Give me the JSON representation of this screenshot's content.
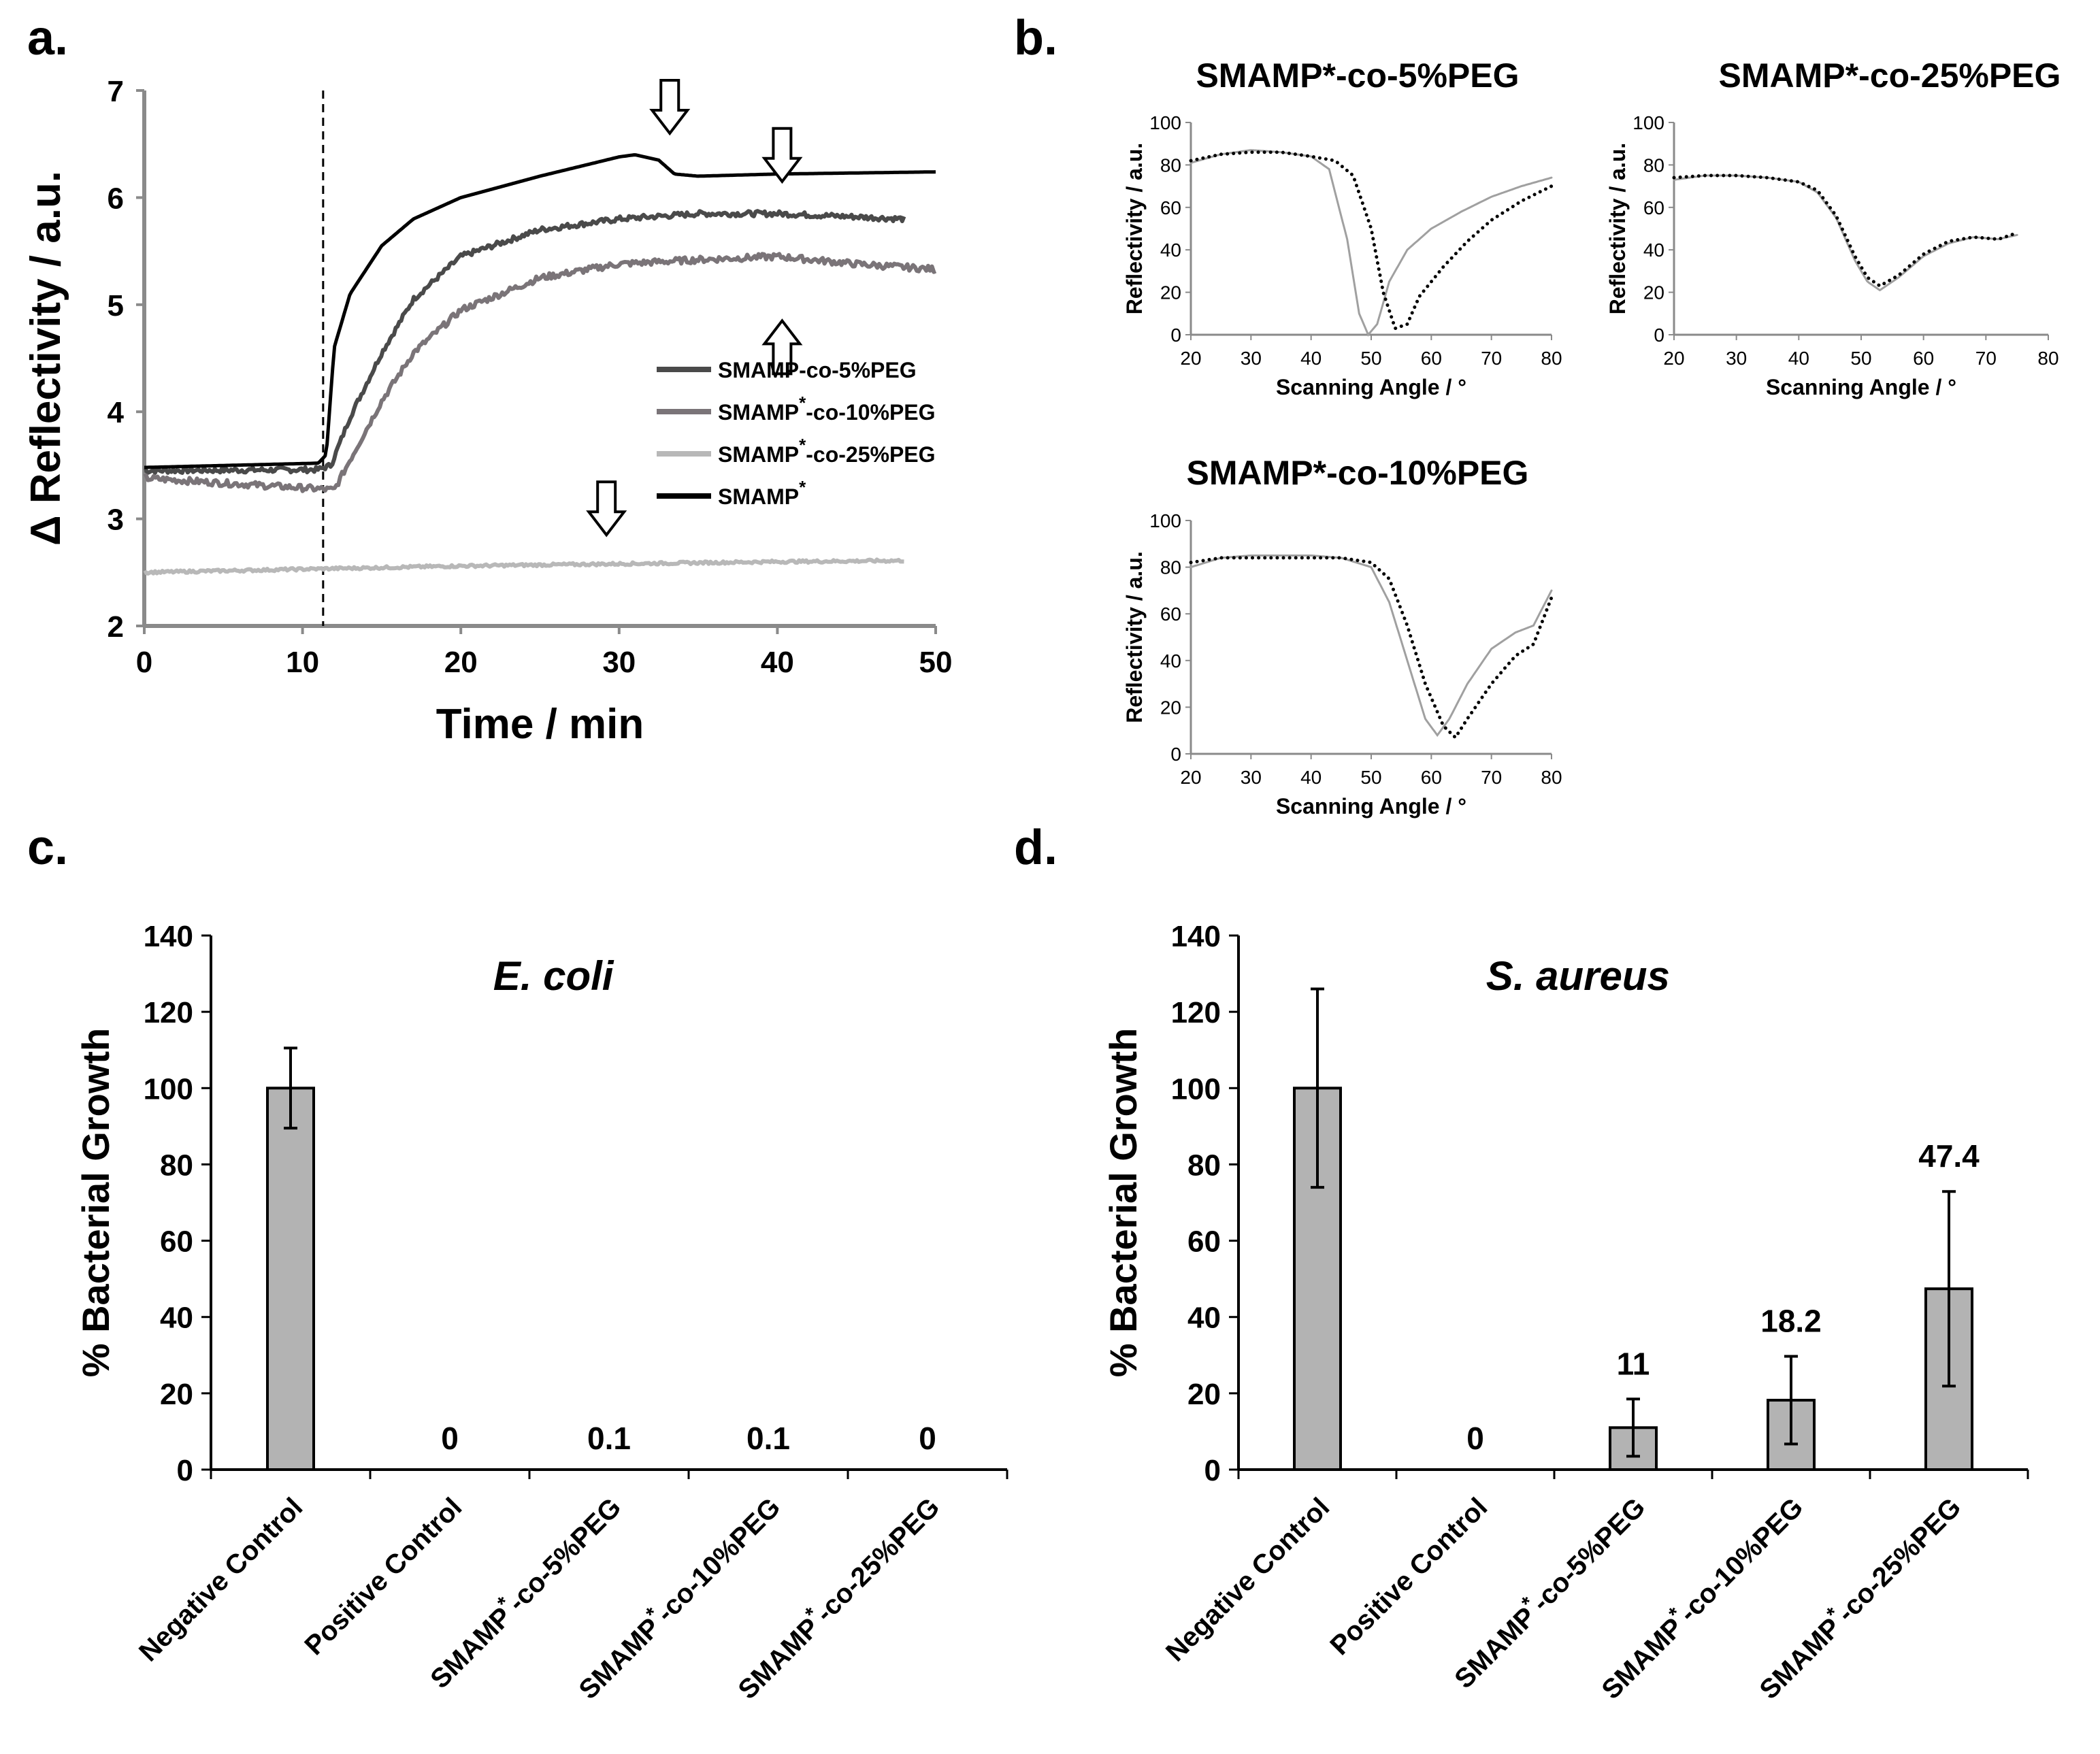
{
  "panels": {
    "a": {
      "letter": "a."
    },
    "b": {
      "letter": "b."
    },
    "c": {
      "letter": "c."
    },
    "d": {
      "letter": "d."
    }
  },
  "chart_data": [
    {
      "id": "a",
      "type": "line",
      "title": "",
      "xlabel": "Time / min",
      "ylabel": "Δ Reflectivity / a.u.",
      "xlim": [
        0,
        50
      ],
      "ylim": [
        2,
        7
      ],
      "xticks": [
        "0",
        "10",
        "20",
        "30",
        "40",
        "50"
      ],
      "yticks": [
        "2",
        "3",
        "4",
        "5",
        "6",
        "7"
      ],
      "injection_time": 11.3,
      "arrows": [
        {
          "x": 33.2,
          "y": 6.6,
          "direction": "down"
        },
        {
          "x": 40.3,
          "y": 6.15,
          "direction": "down"
        },
        {
          "x": 40.3,
          "y": 4.85,
          "direction": "up"
        },
        {
          "x": 29.2,
          "y": 2.85,
          "direction": "down"
        }
      ],
      "series": [
        {
          "name": "SMAMP-co-5%PEG",
          "legend_main": "SMAMP-co-5%PEG",
          "legend_sup": "",
          "legend_tail": "",
          "color": "#4a4a4a",
          "noise": 0.025,
          "points": [
            [
              0,
              3.45
            ],
            [
              11,
              3.46
            ],
            [
              11.8,
              3.5
            ],
            [
              13,
              3.95
            ],
            [
              15,
              4.55
            ],
            [
              17,
              5.05
            ],
            [
              20,
              5.45
            ],
            [
              25,
              5.7
            ],
            [
              30,
              5.8
            ],
            [
              35,
              5.85
            ],
            [
              40,
              5.85
            ],
            [
              45,
              5.82
            ],
            [
              48,
              5.8
            ]
          ]
        },
        {
          "name": "SMAMP*-co-10%PEG",
          "legend_main": "SMAMP",
          "legend_sup": "*",
          "legend_tail": "-co-10%PEG",
          "color": "#7a7478",
          "noise": 0.03,
          "points": [
            [
              0,
              3.38
            ],
            [
              11,
              3.28
            ],
            [
              12,
              3.27
            ],
            [
              13,
              3.55
            ],
            [
              15,
              4.1
            ],
            [
              17,
              4.55
            ],
            [
              20,
              4.95
            ],
            [
              25,
              5.25
            ],
            [
              30,
              5.38
            ],
            [
              35,
              5.42
            ],
            [
              40,
              5.45
            ],
            [
              45,
              5.38
            ],
            [
              50,
              5.33
            ]
          ]
        },
        {
          "name": "SMAMP*-co-25%PEG",
          "legend_main": "SMAMP",
          "legend_sup": "*",
          "legend_tail": "-co-25%PEG",
          "color": "#b8b8b8",
          "noise": 0.012,
          "points": [
            [
              0,
              2.5
            ],
            [
              10,
              2.53
            ],
            [
              20,
              2.56
            ],
            [
              30,
              2.58
            ],
            [
              40,
              2.6
            ],
            [
              48,
              2.61
            ]
          ]
        },
        {
          "name": "SMAMP*",
          "legend_main": "SMAMP",
          "legend_sup": "*",
          "legend_tail": "",
          "color": "#000000",
          "noise": 0,
          "points": [
            [
              0,
              3.48
            ],
            [
              11,
              3.52
            ],
            [
              11.5,
              3.6
            ],
            [
              12,
              4.6
            ],
            [
              13,
              5.1
            ],
            [
              15,
              5.55
            ],
            [
              17,
              5.8
            ],
            [
              20,
              6.0
            ],
            [
              25,
              6.2
            ],
            [
              30,
              6.38
            ],
            [
              31,
              6.4
            ],
            [
              32.5,
              6.35
            ],
            [
              33.5,
              6.22
            ],
            [
              35,
              6.2
            ],
            [
              40,
              6.22
            ],
            [
              45,
              6.23
            ],
            [
              50,
              6.24
            ]
          ]
        }
      ]
    },
    {
      "id": "b1",
      "type": "line",
      "title": "SMAMP*-co-5%PEG",
      "xlabel": "Scanning Angle / °",
      "ylabel": "Reflectivity / a.u.",
      "xlim": [
        20,
        80
      ],
      "ylim": [
        0,
        100
      ],
      "xticks": [
        "20",
        "30",
        "40",
        "50",
        "60",
        "70",
        "80"
      ],
      "yticks": [
        "0",
        "20",
        "40",
        "60",
        "80",
        "100"
      ],
      "series": [
        {
          "name": "solid",
          "style": "solid",
          "color": "#a0a0a0",
          "points": [
            [
              20,
              81
            ],
            [
              25,
              85
            ],
            [
              30,
              87
            ],
            [
              35,
              86
            ],
            [
              40,
              84
            ],
            [
              43,
              78
            ],
            [
              46,
              45
            ],
            [
              48,
              10
            ],
            [
              49.5,
              0
            ],
            [
              51,
              5
            ],
            [
              53,
              25
            ],
            [
              56,
              40
            ],
            [
              60,
              50
            ],
            [
              65,
              58
            ],
            [
              70,
              65
            ],
            [
              75,
              70
            ],
            [
              80,
              74
            ]
          ]
        },
        {
          "name": "dotted",
          "style": "dotted",
          "color": "#000000",
          "points": [
            [
              20,
              82
            ],
            [
              25,
              85
            ],
            [
              30,
              86
            ],
            [
              35,
              86
            ],
            [
              40,
              84
            ],
            [
              44,
              82
            ],
            [
              47,
              75
            ],
            [
              50,
              50
            ],
            [
              52,
              20
            ],
            [
              54,
              3
            ],
            [
              56,
              5
            ],
            [
              58,
              18
            ],
            [
              62,
              32
            ],
            [
              66,
              44
            ],
            [
              70,
              54
            ],
            [
              75,
              63
            ],
            [
              80,
              70
            ]
          ]
        }
      ]
    },
    {
      "id": "b2",
      "type": "line",
      "title": "SMAMP*-co-25%PEG",
      "xlabel": "Scanning Angle / °",
      "ylabel": "Reflectivity / a.u.",
      "xlim": [
        20,
        80
      ],
      "ylim": [
        0,
        100
      ],
      "xticks": [
        "20",
        "30",
        "40",
        "50",
        "60",
        "70",
        "80"
      ],
      "yticks": [
        "0",
        "20",
        "40",
        "60",
        "80",
        "100"
      ],
      "series": [
        {
          "name": "solid",
          "style": "solid",
          "color": "#a0a0a0",
          "points": [
            [
              20,
              73
            ],
            [
              25,
              75
            ],
            [
              30,
              75
            ],
            [
              35,
              74
            ],
            [
              40,
              72
            ],
            [
              43,
              67
            ],
            [
              46,
              55
            ],
            [
              49,
              35
            ],
            [
              51,
              25
            ],
            [
              53,
              21
            ],
            [
              56,
              27
            ],
            [
              60,
              37
            ],
            [
              64,
              43
            ],
            [
              68,
              46
            ],
            [
              72,
              45
            ],
            [
              75,
              47
            ]
          ]
        },
        {
          "name": "dotted",
          "style": "dotted",
          "color": "#000000",
          "points": [
            [
              20,
              74
            ],
            [
              25,
              75
            ],
            [
              30,
              75
            ],
            [
              35,
              74
            ],
            [
              40,
              72
            ],
            [
              43,
              68
            ],
            [
              46,
              56
            ],
            [
              49,
              37
            ],
            [
              51,
              27
            ],
            [
              53,
              23
            ],
            [
              56,
              28
            ],
            [
              60,
              38
            ],
            [
              64,
              44
            ],
            [
              68,
              46
            ],
            [
              72,
              45
            ],
            [
              75,
              48
            ]
          ]
        }
      ]
    },
    {
      "id": "b3",
      "type": "line",
      "title": "SMAMP*-co-10%PEG",
      "xlabel": "Scanning Angle / °",
      "ylabel": "Reflectivity / a.u.",
      "xlim": [
        20,
        80
      ],
      "ylim": [
        0,
        100
      ],
      "xticks": [
        "20",
        "30",
        "40",
        "50",
        "60",
        "70",
        "80"
      ],
      "yticks": [
        "0",
        "20",
        "40",
        "60",
        "80",
        "100"
      ],
      "series": [
        {
          "name": "solid",
          "style": "solid",
          "color": "#a0a0a0",
          "points": [
            [
              20,
              80
            ],
            [
              25,
              84
            ],
            [
              30,
              85
            ],
            [
              35,
              85
            ],
            [
              40,
              85
            ],
            [
              45,
              84
            ],
            [
              50,
              80
            ],
            [
              53,
              65
            ],
            [
              56,
              40
            ],
            [
              59,
              15
            ],
            [
              61,
              8
            ],
            [
              63,
              15
            ],
            [
              66,
              30
            ],
            [
              70,
              45
            ],
            [
              74,
              52
            ],
            [
              77,
              55
            ],
            [
              80,
              70
            ]
          ]
        },
        {
          "name": "dotted",
          "style": "dotted",
          "color": "#000000",
          "points": [
            [
              20,
              82
            ],
            [
              25,
              84
            ],
            [
              30,
              84
            ],
            [
              35,
              84
            ],
            [
              40,
              84
            ],
            [
              45,
              84
            ],
            [
              50,
              82
            ],
            [
              53,
              75
            ],
            [
              56,
              55
            ],
            [
              59,
              30
            ],
            [
              62,
              12
            ],
            [
              64,
              7
            ],
            [
              66,
              15
            ],
            [
              70,
              30
            ],
            [
              74,
              42
            ],
            [
              77,
              47
            ],
            [
              80,
              67
            ]
          ]
        }
      ]
    },
    {
      "id": "c",
      "type": "bar",
      "title": "E. coli",
      "xlabel": "",
      "ylabel": "% Bacterial Growth",
      "ylim": [
        0,
        140
      ],
      "yticks": [
        "0",
        "20",
        "40",
        "60",
        "80",
        "100",
        "120",
        "140"
      ],
      "bar_color": "#b3b3b3",
      "categories": [
        {
          "main": "Negative Control",
          "sup": "",
          "tail": ""
        },
        {
          "main": "Positive Control",
          "sup": "",
          "tail": ""
        },
        {
          "main": "SMAMP",
          "sup": "*",
          "tail": "-co-5%PEG"
        },
        {
          "main": "SMAMP",
          "sup": "*",
          "tail": "-co-10%PEG"
        },
        {
          "main": "SMAMP",
          "sup": "*",
          "tail": "-co-25%PEG"
        }
      ],
      "values": [
        100,
        0,
        0.1,
        0.1,
        0
      ],
      "errors": [
        10.5,
        0,
        0,
        0,
        0
      ],
      "data_labels": [
        "",
        "0",
        "0.1",
        "0.1",
        "0"
      ]
    },
    {
      "id": "d",
      "type": "bar",
      "title": "S. aureus",
      "xlabel": "",
      "ylabel": "% Bacterial Growth",
      "ylim": [
        0,
        140
      ],
      "yticks": [
        "0",
        "20",
        "40",
        "60",
        "80",
        "100",
        "120",
        "140"
      ],
      "bar_color": "#b3b3b3",
      "categories": [
        {
          "main": "Negative Control",
          "sup": "",
          "tail": ""
        },
        {
          "main": "Positive Control",
          "sup": "",
          "tail": ""
        },
        {
          "main": "SMAMP",
          "sup": "*",
          "tail": "-co-5%PEG"
        },
        {
          "main": "SMAMP",
          "sup": "*",
          "tail": "-co-10%PEG"
        },
        {
          "main": "SMAMP",
          "sup": "*",
          "tail": "-co-25%PEG"
        }
      ],
      "values": [
        100,
        0,
        11,
        18.2,
        47.4
      ],
      "errors": [
        26,
        0,
        7.5,
        11.5,
        25.5
      ],
      "data_labels": [
        "",
        "0",
        "11",
        "18.2",
        "47.4"
      ]
    }
  ]
}
